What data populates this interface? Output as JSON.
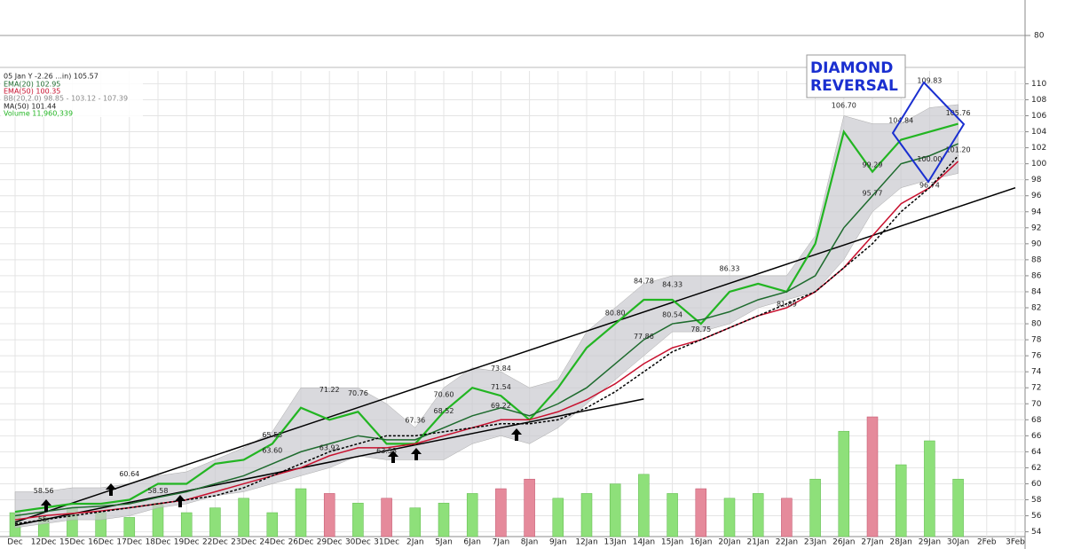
{
  "chart_data": {
    "type": "stock",
    "legend": [
      "05 Jan Y -2.26 ...in) 105.57"
    ],
    "categories": [
      "Dec",
      "12Dec",
      "15Dec",
      "16Dec",
      "17Dec",
      "18Dec",
      "19Dec",
      "22Dec",
      "23Dec",
      "24Dec",
      "26Dec",
      "29Dec",
      "30Dec",
      "31Dec",
      "2Jan",
      "5Jan",
      "6Jan",
      "7Jan",
      "8Jan",
      "9Jan",
      "12Jan",
      "13Jan",
      "14Jan",
      "15Jan",
      "16Jan",
      "20Jan",
      "21Jan",
      "22Jan",
      "23Jan",
      "26Jan",
      "27Jan",
      "28Jan",
      "29Jan",
      "30Jan",
      "2Feb",
      "3Feb"
    ],
    "series": [
      {
        "name": "Price",
        "color": "#22b522",
        "values": [
          56.5,
          57,
          57.5,
          57.5,
          58,
          60,
          60,
          62.5,
          63,
          65,
          69.5,
          68,
          69,
          65,
          65,
          69,
          72,
          71,
          68,
          72,
          77,
          80,
          83,
          83,
          80,
          84,
          85,
          84,
          90,
          104,
          99,
          103,
          104,
          105,
          null,
          null
        ]
      },
      {
        "name": "EMA(20) 102.95",
        "color": "#1e6b2e",
        "values": [
          56,
          56.5,
          57,
          57.2,
          57.5,
          58.3,
          59,
          60,
          61,
          62.5,
          64,
          65,
          66,
          65.5,
          65.5,
          67,
          68.5,
          69.5,
          68.5,
          70,
          72,
          75,
          78,
          80,
          80.5,
          81.5,
          83,
          84,
          86,
          92,
          96,
          100,
          101,
          102.5,
          null,
          null
        ]
      },
      {
        "name": "EMA(50) 100.35",
        "color": "#c8102e",
        "values": [
          55.5,
          56,
          56.3,
          56.6,
          57,
          57.5,
          58,
          59,
          60,
          61,
          62,
          63.5,
          64.5,
          64.5,
          65,
          66,
          67,
          68,
          68,
          69,
          70.5,
          72.5,
          75,
          77,
          78,
          79.5,
          81,
          82,
          84,
          87,
          91,
          95,
          97,
          100.3,
          null,
          null
        ]
      },
      {
        "name": "MA(50) 101.44",
        "color": "#000000",
        "dashed": true,
        "values": [
          55,
          55.5,
          56,
          56.5,
          57,
          57.5,
          58,
          58.5,
          59.5,
          61,
          62.5,
          64,
          65,
          66,
          66,
          66.5,
          67,
          67.5,
          67.5,
          68,
          69.5,
          71.5,
          74,
          76.5,
          78,
          79.5,
          81,
          82.5,
          84,
          87,
          90,
          94,
          97,
          101,
          null,
          null
        ]
      }
    ],
    "band": {
      "name": "BB(20,2.0) 98.85 - 103.12 - 107.39",
      "color": "#c9c9cf",
      "upper": [
        59,
        59,
        59.5,
        59.5,
        60,
        61,
        61.5,
        63,
        64.5,
        66.5,
        72,
        72,
        72,
        70,
        67,
        72,
        74.5,
        74,
        72,
        73,
        79,
        82,
        85,
        86,
        86,
        86,
        86,
        86,
        91,
        106,
        105,
        105,
        107,
        107.4,
        null,
        null
      ],
      "lower": [
        54.5,
        55,
        55.5,
        55.5,
        56,
        57,
        57.5,
        58.5,
        59,
        60,
        61,
        62,
        63.5,
        63,
        63,
        63,
        65,
        66,
        65,
        67,
        70,
        73,
        76,
        79,
        79,
        80,
        82,
        83,
        84,
        88,
        94,
        97,
        98,
        98.8,
        null,
        null
      ]
    },
    "volume": {
      "name": "Volume 11,960,339",
      "up_color": "#8ee07a",
      "down_color": "#e58a9b",
      "values": [
        5000000,
        4000000,
        6000000,
        5000000,
        4000000,
        7000000,
        5000000,
        6000000,
        8000000,
        5000000,
        10000000,
        9000000,
        7000000,
        8000000,
        6000000,
        7000000,
        9000000,
        10000000,
        12000000,
        8000000,
        9000000,
        11000000,
        13000000,
        9000000,
        10000000,
        8000000,
        9000000,
        8000000,
        12000000,
        22000000,
        25000000,
        15000000,
        20000000,
        12000000,
        null,
        null
      ]
    },
    "ylim": [
      53.4,
      111.6
    ],
    "yticks": [
      54,
      56,
      58,
      60,
      62,
      64,
      66,
      68,
      70,
      72,
      74,
      76,
      78,
      80,
      82,
      84,
      86,
      88,
      90,
      92,
      94,
      96,
      98,
      100,
      102,
      104,
      106,
      108,
      110
    ],
    "grid": true,
    "annotations": [
      {
        "date": "12Dec",
        "value": 58.56
      },
      {
        "date": "12Dec",
        "value": 55,
        "label": "55."
      },
      {
        "date": "17Dec",
        "value": 60.64
      },
      {
        "date": "18Dec",
        "value": 58.58
      },
      {
        "date": "24Dec",
        "value": 65.53
      },
      {
        "date": "24Dec",
        "value": 63.6,
        "label": "63.60"
      },
      {
        "date": "29Dec",
        "value": 71.22
      },
      {
        "date": "29Dec",
        "value": 63.92
      },
      {
        "date": "30Dec",
        "value": 70.76
      },
      {
        "date": "2Jan",
        "value": 67.36
      },
      {
        "date": "31Dec",
        "value": 63.53
      },
      {
        "date": "5Jan",
        "value": 70.6,
        "label": "70.60"
      },
      {
        "date": "5Jan",
        "value": 68.52
      },
      {
        "date": "7Jan",
        "value": 73.84
      },
      {
        "date": "7Jan",
        "value": 71.54
      },
      {
        "date": "7Jan",
        "value": 69.22
      },
      {
        "date": "13Jan",
        "value": 80.8,
        "label": "80.80"
      },
      {
        "date": "14Jan",
        "value": 77.86
      },
      {
        "date": "14Jan",
        "value": 84.78
      },
      {
        "date": "15Jan",
        "value": 84.33
      },
      {
        "date": "15Jan",
        "value": 80.54
      },
      {
        "date": "16Jan",
        "value": 78.75
      },
      {
        "date": "20Jan",
        "value": 86.33
      },
      {
        "date": "22Jan",
        "value": 81.89
      },
      {
        "date": "26Jan",
        "value": 106.7,
        "label": "106.70"
      },
      {
        "date": "27Jan",
        "value": 99.29
      },
      {
        "date": "27Jan",
        "value": 95.77
      },
      {
        "date": "28Jan",
        "value": 104.84
      },
      {
        "date": "29Jan",
        "value": 109.83
      },
      {
        "date": "30Jan",
        "value": 105.76
      },
      {
        "date": "29Jan",
        "value": 100,
        "label": "100.00"
      },
      {
        "date": "30Jan",
        "value": 101.2,
        "label": "101.20"
      },
      {
        "date": "29Jan",
        "value": 96.74
      }
    ],
    "trendlines": [
      {
        "from": {
          "date": "Dec",
          "value": 55.2
        },
        "to": {
          "date": "3Feb",
          "value": 97
        }
      },
      {
        "from": {
          "date": "Dec",
          "value": 54.8
        },
        "to": {
          "date": "14Jan",
          "value": 70.6
        }
      }
    ],
    "pattern_label": [
      "DIAMOND",
      "REVERSAL"
    ]
  },
  "upper_pane": {
    "yticks": [
      80
    ]
  }
}
